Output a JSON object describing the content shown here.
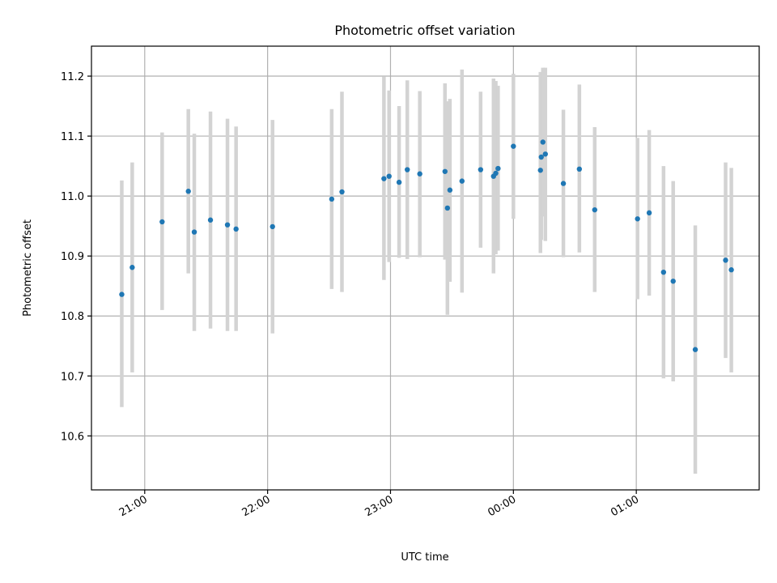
{
  "chart_data": {
    "type": "scatter",
    "title": "Photometric offset variation",
    "xlabel": "UTC time",
    "ylabel": "Photometric offset",
    "x_unit": "minutes relative to 21:00 UTC",
    "xlim": [
      -26,
      300
    ],
    "ylim": [
      10.51,
      11.25
    ],
    "xticks": [
      {
        "value": 0,
        "label": "21:00"
      },
      {
        "value": 60,
        "label": "22:00"
      },
      {
        "value": 120,
        "label": "23:00"
      },
      {
        "value": 180,
        "label": "00:00"
      },
      {
        "value": 240,
        "label": "01:00"
      }
    ],
    "yticks": [
      {
        "value": 10.6,
        "label": "10.6"
      },
      {
        "value": 10.7,
        "label": "10.7"
      },
      {
        "value": 10.8,
        "label": "10.8"
      },
      {
        "value": 10.9,
        "label": "10.9"
      },
      {
        "value": 11.0,
        "label": "11.0"
      },
      {
        "value": 11.1,
        "label": "11.1"
      },
      {
        "value": 11.2,
        "label": "11.2"
      }
    ],
    "grid": true,
    "colors": {
      "point": "#1f77b4",
      "errorbar": "#d3d3d3",
      "grid": "#b0b0b0"
    },
    "series": [
      {
        "points": [
          {
            "x": -11.2,
            "y": 10.836,
            "lo": 10.648,
            "hi": 11.026
          },
          {
            "x": -6.1,
            "y": 10.881,
            "lo": 10.706,
            "hi": 11.056
          },
          {
            "x": 8.5,
            "y": 10.957,
            "lo": 10.81,
            "hi": 11.106
          },
          {
            "x": 21.3,
            "y": 11.008,
            "lo": 10.871,
            "hi": 11.145
          },
          {
            "x": 24.2,
            "y": 10.94,
            "lo": 10.775,
            "hi": 11.104
          },
          {
            "x": 32.1,
            "y": 10.96,
            "lo": 10.779,
            "hi": 11.141
          },
          {
            "x": 40.4,
            "y": 10.952,
            "lo": 10.775,
            "hi": 11.129
          },
          {
            "x": 44.6,
            "y": 10.945,
            "lo": 10.775,
            "hi": 11.116
          },
          {
            "x": 62.4,
            "y": 10.949,
            "lo": 10.771,
            "hi": 11.127
          },
          {
            "x": 91.3,
            "y": 10.995,
            "lo": 10.845,
            "hi": 11.145
          },
          {
            "x": 96.3,
            "y": 11.007,
            "lo": 10.84,
            "hi": 11.174
          },
          {
            "x": 116.8,
            "y": 11.029,
            "lo": 10.86,
            "hi": 11.199
          },
          {
            "x": 119.3,
            "y": 11.033,
            "lo": 10.89,
            "hi": 11.176
          },
          {
            "x": 124.2,
            "y": 11.023,
            "lo": 10.897,
            "hi": 11.15
          },
          {
            "x": 128.2,
            "y": 11.044,
            "lo": 10.895,
            "hi": 11.193
          },
          {
            "x": 134.3,
            "y": 11.037,
            "lo": 10.898,
            "hi": 11.175
          },
          {
            "x": 146.6,
            "y": 11.041,
            "lo": 10.894,
            "hi": 11.188
          },
          {
            "x": 147.8,
            "y": 10.98,
            "lo": 10.802,
            "hi": 11.158
          },
          {
            "x": 149.0,
            "y": 11.01,
            "lo": 10.857,
            "hi": 11.162
          },
          {
            "x": 154.9,
            "y": 11.025,
            "lo": 10.839,
            "hi": 11.211
          },
          {
            "x": 164.0,
            "y": 11.044,
            "lo": 10.914,
            "hi": 11.174
          },
          {
            "x": 170.3,
            "y": 11.033,
            "lo": 10.871,
            "hi": 11.196
          },
          {
            "x": 171.4,
            "y": 11.038,
            "lo": 10.903,
            "hi": 11.192
          },
          {
            "x": 172.5,
            "y": 11.046,
            "lo": 10.909,
            "hi": 11.184
          },
          {
            "x": 180.0,
            "y": 11.083,
            "lo": 10.962,
            "hi": 11.204
          },
          {
            "x": 193.2,
            "y": 11.043,
            "lo": 10.905,
            "hi": 11.207
          },
          {
            "x": 193.6,
            "y": 11.065,
            "lo": 10.927,
            "hi": 11.203
          },
          {
            "x": 194.4,
            "y": 11.09,
            "lo": 10.966,
            "hi": 11.214
          },
          {
            "x": 195.6,
            "y": 11.07,
            "lo": 10.925,
            "hi": 11.214
          },
          {
            "x": 204.4,
            "y": 11.021,
            "lo": 10.898,
            "hi": 11.144
          },
          {
            "x": 212.2,
            "y": 11.045,
            "lo": 10.906,
            "hi": 11.186
          },
          {
            "x": 219.7,
            "y": 10.977,
            "lo": 10.84,
            "hi": 11.115
          },
          {
            "x": 240.6,
            "y": 10.962,
            "lo": 10.828,
            "hi": 11.097
          },
          {
            "x": 246.3,
            "y": 10.972,
            "lo": 10.834,
            "hi": 11.11
          },
          {
            "x": 253.3,
            "y": 10.873,
            "lo": 10.696,
            "hi": 11.05
          },
          {
            "x": 258.0,
            "y": 10.858,
            "lo": 10.691,
            "hi": 11.025
          },
          {
            "x": 268.8,
            "y": 10.744,
            "lo": 10.537,
            "hi": 10.951
          },
          {
            "x": 283.6,
            "y": 10.893,
            "lo": 10.73,
            "hi": 11.056
          },
          {
            "x": 286.4,
            "y": 10.877,
            "lo": 10.706,
            "hi": 11.047
          }
        ]
      }
    ]
  }
}
